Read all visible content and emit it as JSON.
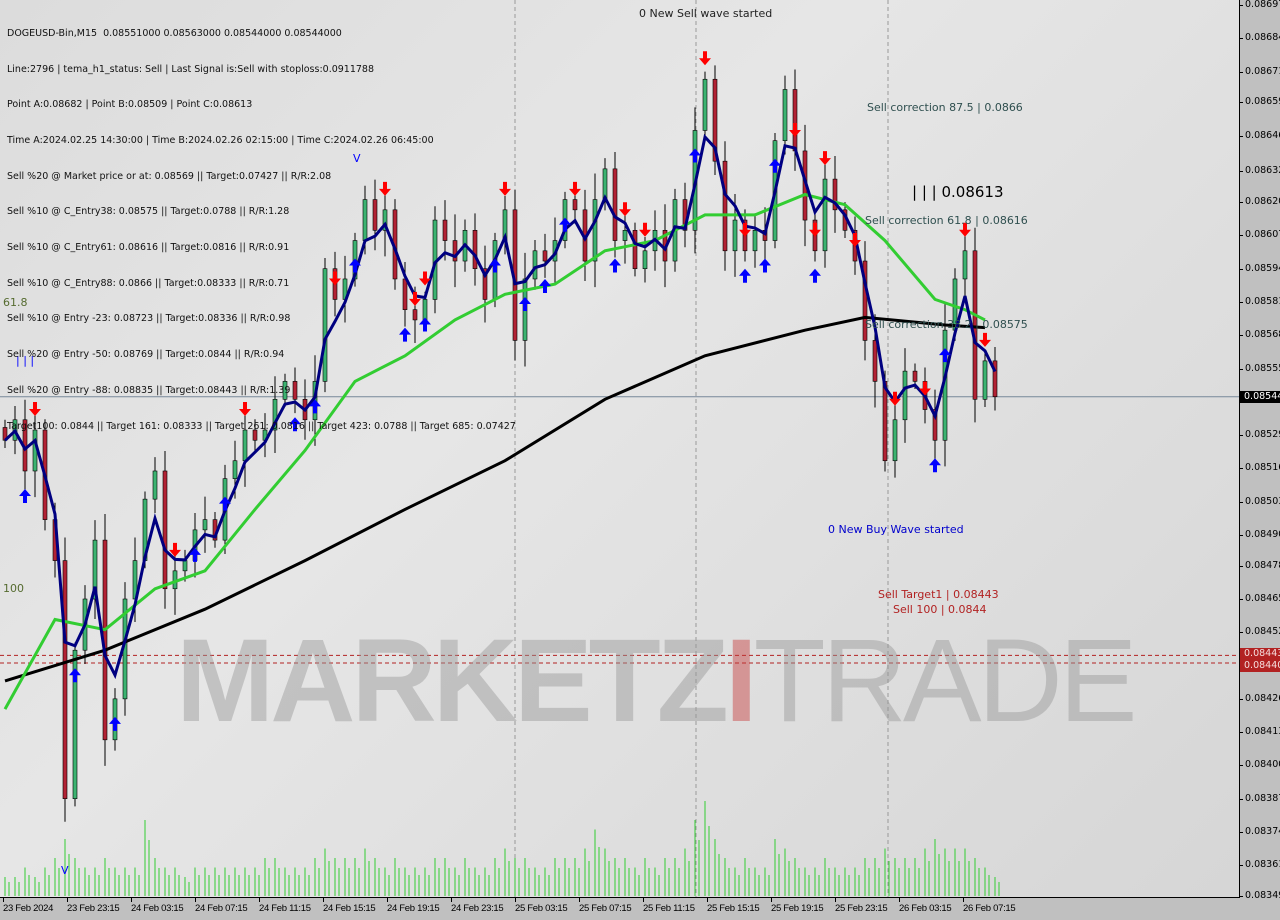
{
  "header": {
    "symbol_line": "DOGEUSD-Bin,M15  0.08551000 0.08563000 0.08544000 0.08544000",
    "lines": [
      "Line:2796 | tema_h1_status: Sell | Last Signal is:Sell with stoploss:0.0911788",
      "Point A:0.08682 | Point B:0.08509 | Point C:0.08613",
      "Time A:2024.02.25 14:30:00 | Time B:2024.02.26 02:15:00 | Time C:2024.02.26 06:45:00",
      "Sell %20 @ Market price or at: 0.08569 || Target:0.07427 || R/R:2.08",
      "Sell %10 @ C_Entry38: 0.08575 || Target:0.0788 || R/R:1.28",
      "Sell %10 @ C_Entry61: 0.08616 || Target:0.0816 || R/R:0.91",
      "Sell %10 @ C_Entry88: 0.0866 || Target:0.08333 || R/R:0.71",
      "Sell %10 @ Entry -23: 0.08723 || Target:0.08336 || R/R:0.98",
      "Sell %20 @ Entry -50: 0.08769 || Target:0.0844 || R/R:0.94",
      "Sell %20 @ Entry -88: 0.08835 || Target:0.08443 || R/R:1.39",
      "Target100: 0.0844 || Target 161: 0.08333 || Target 261: 0.0816 || Target 423: 0.0788 || Target 685: 0.07427"
    ]
  },
  "annotations": {
    "sell_wave": "0 New Sell wave started",
    "buy_wave": "0 New Buy Wave started",
    "corr_875": "Sell correction 87.5 | 0.0866",
    "point_c": "| | | 0.08613",
    "corr_618": "Sell correction 61.8 | 0.08616",
    "corr_382": "Sell correction 38.2 | 0.08575",
    "target1": "Sell Target1 | 0.08443",
    "sell100": "Sell 100 | 0.0844",
    "fib_618": "61.8",
    "fib_100": "100",
    "marker_bars": "| | |",
    "v_top": "V",
    "v_bottom": "V"
  },
  "watermark": {
    "part1": "MARKETZ",
    "part2": "I",
    "part3": "TRADE"
  },
  "colors": {
    "bull": "#3cb371",
    "bear": "#b22234",
    "wick": "#000000",
    "ma_fast": "#000080",
    "ma_mid": "#32cd32",
    "ma_slow": "#000000",
    "sell_arrow": "#ff0000",
    "buy_arrow": "#0000ff",
    "price_line": "#778899",
    "target_line": "#b22222",
    "volume": "#32cd32"
  },
  "chart_data": {
    "type": "candlestick",
    "symbol": "DOGEUSD-Bin",
    "timeframe": "M15",
    "ylim": [
      0.08349,
      0.08697
    ],
    "y_ticks": [
      "0.08697",
      "0.08684",
      "0.08671",
      "0.08659",
      "0.08646",
      "0.08632",
      "0.08620",
      "0.08607",
      "0.08594",
      "0.08581",
      "0.08568",
      "0.08555",
      "0.08529",
      "0.08516",
      "0.08503",
      "0.08490",
      "0.08478",
      "0.08465",
      "0.08452",
      "0.08426",
      "0.08413",
      "0.08400",
      "0.08387",
      "0.08374",
      "0.08361",
      "0.08349"
    ],
    "x_ticks": [
      "23 Feb 2024",
      "23 Feb 23:15",
      "24 Feb 03:15",
      "24 Feb 07:15",
      "24 Feb 11:15",
      "24 Feb 15:15",
      "24 Feb 19:15",
      "24 Feb 23:15",
      "25 Feb 03:15",
      "25 Feb 07:15",
      "25 Feb 11:15",
      "25 Feb 15:15",
      "25 Feb 19:15",
      "25 Feb 23:15",
      "26 Feb 03:15",
      "26 Feb 07:15"
    ],
    "current_price": "0.08544",
    "target_labels": [
      "0.08443",
      "0.08440"
    ],
    "target_prices": [
      0.08443,
      0.0844
    ],
    "close": [
      0.08527,
      0.08535,
      0.08515,
      0.08531,
      0.08496,
      0.0848,
      0.08387,
      0.08445,
      0.08465,
      0.08488,
      0.0841,
      0.08426,
      0.08465,
      0.0848,
      0.08504,
      0.08515,
      0.08469,
      0.08476,
      0.0848,
      0.08492,
      0.08496,
      0.08488,
      0.08512,
      0.08519,
      0.08531,
      0.08527,
      0.08531,
      0.08543,
      0.0855,
      0.08543,
      0.08535,
      0.0855,
      0.08594,
      0.08582,
      0.0859,
      0.08605,
      0.08621,
      0.08609,
      0.08617,
      0.0859,
      0.08578,
      0.08574,
      0.08582,
      0.08613,
      0.08605,
      0.08597,
      0.08609,
      0.08594,
      0.08582,
      0.08605,
      0.08617,
      0.08566,
      0.0859,
      0.08601,
      0.08597,
      0.08605,
      0.08621,
      0.08617,
      0.08597,
      0.08621,
      0.08633,
      0.08605,
      0.08609,
      0.08594,
      0.08601,
      0.08609,
      0.08597,
      0.08621,
      0.08609,
      0.08648,
      0.08668,
      0.08636,
      0.08601,
      0.08613,
      0.08601,
      0.08609,
      0.08605,
      0.08644,
      0.08664,
      0.0864,
      0.08613,
      0.08601,
      0.08629,
      0.08617,
      0.08609,
      0.08597,
      0.08566,
      0.0855,
      0.08519,
      0.08535,
      0.08554,
      0.0855,
      0.08539,
      0.08527,
      0.0857,
      0.0859,
      0.08601,
      0.08543,
      0.08558,
      0.08544
    ],
    "volume_relative": [
      0.2,
      0.2,
      0.3,
      0.2,
      0.3,
      0.4,
      0.6,
      0.4,
      0.3,
      0.3,
      0.4,
      0.3,
      0.3,
      0.3,
      0.8,
      0.4,
      0.3,
      0.3,
      0.2,
      0.3,
      0.3,
      0.3,
      0.3,
      0.3,
      0.3,
      0.3,
      0.4,
      0.4,
      0.3,
      0.3,
      0.3,
      0.4,
      0.5,
      0.4,
      0.4,
      0.4,
      0.5,
      0.4,
      0.3,
      0.4,
      0.3,
      0.3,
      0.3,
      0.4,
      0.4,
      0.3,
      0.4,
      0.3,
      0.3,
      0.4,
      0.5,
      0.4,
      0.4,
      0.3,
      0.3,
      0.4,
      0.4,
      0.4,
      0.5,
      0.7,
      0.5,
      0.4,
      0.4,
      0.3,
      0.4,
      0.3,
      0.4,
      0.4,
      0.5,
      0.8,
      1.0,
      0.6,
      0.4,
      0.3,
      0.4,
      0.3,
      0.3,
      0.6,
      0.5,
      0.4,
      0.3,
      0.3,
      0.4,
      0.3,
      0.3,
      0.3,
      0.4,
      0.4,
      0.5,
      0.4,
      0.4,
      0.4,
      0.5,
      0.6,
      0.5,
      0.5,
      0.5,
      0.4,
      0.3,
      0.2
    ],
    "ma_slow": [
      0.08433,
      0.08445,
      0.08461,
      0.0848,
      0.085,
      0.08519,
      0.08543,
      0.0856,
      0.0857,
      0.08575,
      0.08572,
      0.08571
    ],
    "ma_slow_bars": [
      0,
      10,
      20,
      30,
      40,
      50,
      60,
      70,
      80,
      86,
      94,
      98
    ],
    "ma_mid": [
      0.08422,
      0.08457,
      0.08453,
      0.08469,
      0.08476,
      0.085,
      0.08523,
      0.0855,
      0.0856,
      0.08574,
      0.08584,
      0.08588,
      0.08601,
      0.08605,
      0.08615,
      0.08615,
      0.08623,
      0.08619,
      0.08605,
      0.08582,
      0.08578,
      0.08574
    ],
    "ma_mid_bars": [
      0,
      5,
      10,
      15,
      20,
      25,
      30,
      35,
      40,
      45,
      50,
      55,
      60,
      65,
      70,
      75,
      80,
      84,
      88,
      93,
      96,
      98
    ],
    "sell_signals": [
      3,
      17,
      24,
      33,
      38,
      41,
      42,
      50,
      57,
      62,
      64,
      70,
      74,
      79,
      81,
      82,
      85,
      89,
      92,
      96,
      98
    ],
    "buy_signals": [
      2,
      7,
      11,
      19,
      22,
      29,
      31,
      35,
      40,
      42,
      49,
      52,
      54,
      56,
      61,
      69,
      74,
      76,
      77,
      81,
      93,
      94
    ]
  }
}
